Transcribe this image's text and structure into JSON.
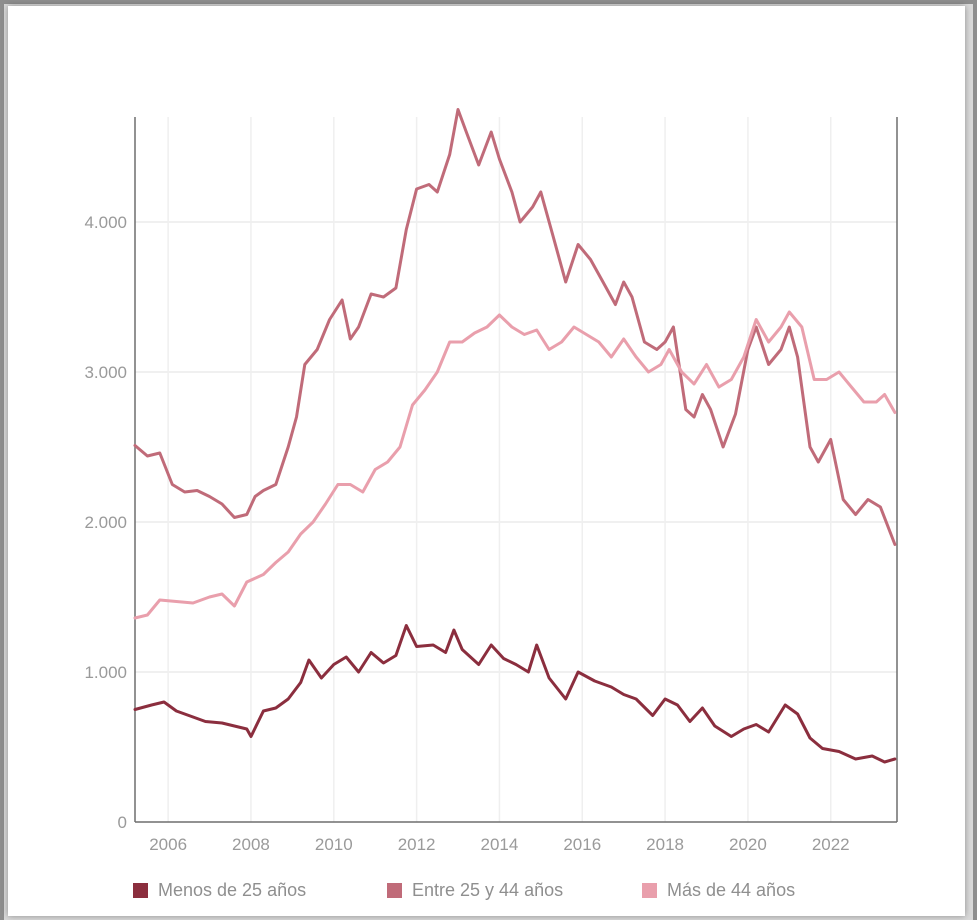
{
  "chart_data": {
    "type": "line",
    "title": "",
    "xlabel": "",
    "ylabel": "",
    "xlim": [
      2005.2,
      2023.6
    ],
    "ylim": [
      0,
      4700
    ],
    "x_ticks": [
      2006,
      2008,
      2010,
      2012,
      2014,
      2016,
      2018,
      2020,
      2022
    ],
    "x_tick_labels": [
      "2006",
      "2008",
      "2010",
      "2012",
      "2014",
      "2016",
      "2018",
      "2020",
      "2022"
    ],
    "y_ticks": [
      0,
      1000,
      2000,
      3000,
      4000
    ],
    "y_tick_labels": [
      "0",
      "1.000",
      "2.000",
      "3.000",
      "4.000"
    ],
    "grid": true,
    "legend_position": "bottom",
    "series": [
      {
        "name": "Menos de 25 años",
        "color": "#8b2e3e",
        "points": [
          [
            2005.2,
            750
          ],
          [
            2005.6,
            780
          ],
          [
            2005.9,
            800
          ],
          [
            2006.2,
            740
          ],
          [
            2006.6,
            700
          ],
          [
            2006.9,
            670
          ],
          [
            2007.3,
            660
          ],
          [
            2007.6,
            640
          ],
          [
            2007.9,
            620
          ],
          [
            2008.0,
            570
          ],
          [
            2008.3,
            740
          ],
          [
            2008.6,
            760
          ],
          [
            2008.9,
            820
          ],
          [
            2009.2,
            930
          ],
          [
            2009.4,
            1080
          ],
          [
            2009.7,
            960
          ],
          [
            2010.0,
            1050
          ],
          [
            2010.3,
            1100
          ],
          [
            2010.6,
            1000
          ],
          [
            2010.9,
            1130
          ],
          [
            2011.2,
            1060
          ],
          [
            2011.5,
            1110
          ],
          [
            2011.75,
            1310
          ],
          [
            2012.0,
            1170
          ],
          [
            2012.4,
            1180
          ],
          [
            2012.7,
            1130
          ],
          [
            2012.9,
            1280
          ],
          [
            2013.1,
            1150
          ],
          [
            2013.5,
            1050
          ],
          [
            2013.8,
            1180
          ],
          [
            2014.1,
            1090
          ],
          [
            2014.4,
            1050
          ],
          [
            2014.7,
            1000
          ],
          [
            2014.9,
            1180
          ],
          [
            2015.2,
            960
          ],
          [
            2015.6,
            820
          ],
          [
            2015.9,
            1000
          ],
          [
            2016.3,
            940
          ],
          [
            2016.7,
            900
          ],
          [
            2017.0,
            850
          ],
          [
            2017.3,
            820
          ],
          [
            2017.7,
            710
          ],
          [
            2018.0,
            820
          ],
          [
            2018.3,
            780
          ],
          [
            2018.6,
            670
          ],
          [
            2018.9,
            760
          ],
          [
            2019.2,
            640
          ],
          [
            2019.6,
            570
          ],
          [
            2019.9,
            620
          ],
          [
            2020.2,
            650
          ],
          [
            2020.5,
            600
          ],
          [
            2020.9,
            780
          ],
          [
            2021.2,
            720
          ],
          [
            2021.5,
            560
          ],
          [
            2021.8,
            490
          ],
          [
            2022.2,
            470
          ],
          [
            2022.6,
            420
          ],
          [
            2023.0,
            440
          ],
          [
            2023.3,
            400
          ],
          [
            2023.55,
            420
          ]
        ]
      },
      {
        "name": "Entre 25 y 44 años",
        "color": "#c06b79",
        "points": [
          [
            2005.2,
            2510
          ],
          [
            2005.5,
            2440
          ],
          [
            2005.8,
            2460
          ],
          [
            2006.1,
            2250
          ],
          [
            2006.4,
            2200
          ],
          [
            2006.7,
            2210
          ],
          [
            2007.0,
            2170
          ],
          [
            2007.3,
            2120
          ],
          [
            2007.6,
            2030
          ],
          [
            2007.9,
            2050
          ],
          [
            2008.1,
            2170
          ],
          [
            2008.3,
            2210
          ],
          [
            2008.6,
            2250
          ],
          [
            2008.9,
            2500
          ],
          [
            2009.1,
            2700
          ],
          [
            2009.3,
            3050
          ],
          [
            2009.6,
            3150
          ],
          [
            2009.9,
            3350
          ],
          [
            2010.2,
            3480
          ],
          [
            2010.4,
            3220
          ],
          [
            2010.6,
            3300
          ],
          [
            2010.9,
            3520
          ],
          [
            2011.2,
            3500
          ],
          [
            2011.5,
            3560
          ],
          [
            2011.75,
            3950
          ],
          [
            2012.0,
            4220
          ],
          [
            2012.3,
            4250
          ],
          [
            2012.5,
            4200
          ],
          [
            2012.8,
            4450
          ],
          [
            2013.0,
            4750
          ],
          [
            2013.2,
            4600
          ],
          [
            2013.5,
            4380
          ],
          [
            2013.8,
            4600
          ],
          [
            2014.0,
            4420
          ],
          [
            2014.3,
            4200
          ],
          [
            2014.5,
            4000
          ],
          [
            2014.8,
            4100
          ],
          [
            2015.0,
            4200
          ],
          [
            2015.3,
            3900
          ],
          [
            2015.6,
            3600
          ],
          [
            2015.9,
            3850
          ],
          [
            2016.2,
            3750
          ],
          [
            2016.5,
            3600
          ],
          [
            2016.8,
            3450
          ],
          [
            2017.0,
            3600
          ],
          [
            2017.2,
            3500
          ],
          [
            2017.5,
            3200
          ],
          [
            2017.8,
            3150
          ],
          [
            2018.0,
            3200
          ],
          [
            2018.2,
            3300
          ],
          [
            2018.5,
            2750
          ],
          [
            2018.7,
            2700
          ],
          [
            2018.9,
            2850
          ],
          [
            2019.1,
            2750
          ],
          [
            2019.4,
            2500
          ],
          [
            2019.7,
            2720
          ],
          [
            2020.0,
            3150
          ],
          [
            2020.2,
            3300
          ],
          [
            2020.5,
            3050
          ],
          [
            2020.8,
            3150
          ],
          [
            2021.0,
            3300
          ],
          [
            2021.2,
            3100
          ],
          [
            2021.5,
            2500
          ],
          [
            2021.7,
            2400
          ],
          [
            2022.0,
            2550
          ],
          [
            2022.3,
            2150
          ],
          [
            2022.6,
            2050
          ],
          [
            2022.9,
            2150
          ],
          [
            2023.2,
            2100
          ],
          [
            2023.55,
            1850
          ]
        ]
      },
      {
        "name": "Más de 44 años",
        "color": "#e99fac",
        "points": [
          [
            2005.2,
            1360
          ],
          [
            2005.5,
            1380
          ],
          [
            2005.8,
            1480
          ],
          [
            2006.2,
            1470
          ],
          [
            2006.6,
            1460
          ],
          [
            2007.0,
            1500
          ],
          [
            2007.3,
            1520
          ],
          [
            2007.6,
            1440
          ],
          [
            2007.9,
            1600
          ],
          [
            2008.3,
            1650
          ],
          [
            2008.6,
            1730
          ],
          [
            2008.9,
            1800
          ],
          [
            2009.2,
            1920
          ],
          [
            2009.5,
            2000
          ],
          [
            2009.8,
            2120
          ],
          [
            2010.1,
            2250
          ],
          [
            2010.4,
            2250
          ],
          [
            2010.7,
            2200
          ],
          [
            2011.0,
            2350
          ],
          [
            2011.3,
            2400
          ],
          [
            2011.6,
            2500
          ],
          [
            2011.9,
            2780
          ],
          [
            2012.2,
            2880
          ],
          [
            2012.5,
            3000
          ],
          [
            2012.8,
            3200
          ],
          [
            2013.1,
            3200
          ],
          [
            2013.4,
            3260
          ],
          [
            2013.7,
            3300
          ],
          [
            2014.0,
            3380
          ],
          [
            2014.3,
            3300
          ],
          [
            2014.6,
            3250
          ],
          [
            2014.9,
            3280
          ],
          [
            2015.2,
            3150
          ],
          [
            2015.5,
            3200
          ],
          [
            2015.8,
            3300
          ],
          [
            2016.1,
            3250
          ],
          [
            2016.4,
            3200
          ],
          [
            2016.7,
            3100
          ],
          [
            2017.0,
            3220
          ],
          [
            2017.3,
            3100
          ],
          [
            2017.6,
            3000
          ],
          [
            2017.9,
            3050
          ],
          [
            2018.1,
            3150
          ],
          [
            2018.4,
            3000
          ],
          [
            2018.7,
            2920
          ],
          [
            2019.0,
            3050
          ],
          [
            2019.3,
            2900
          ],
          [
            2019.6,
            2950
          ],
          [
            2019.9,
            3100
          ],
          [
            2020.2,
            3350
          ],
          [
            2020.5,
            3200
          ],
          [
            2020.8,
            3300
          ],
          [
            2021.0,
            3400
          ],
          [
            2021.3,
            3300
          ],
          [
            2021.6,
            2950
          ],
          [
            2021.9,
            2950
          ],
          [
            2022.2,
            3000
          ],
          [
            2022.5,
            2900
          ],
          [
            2022.8,
            2800
          ],
          [
            2023.1,
            2800
          ],
          [
            2023.3,
            2850
          ],
          [
            2023.55,
            2730
          ]
        ]
      }
    ]
  }
}
